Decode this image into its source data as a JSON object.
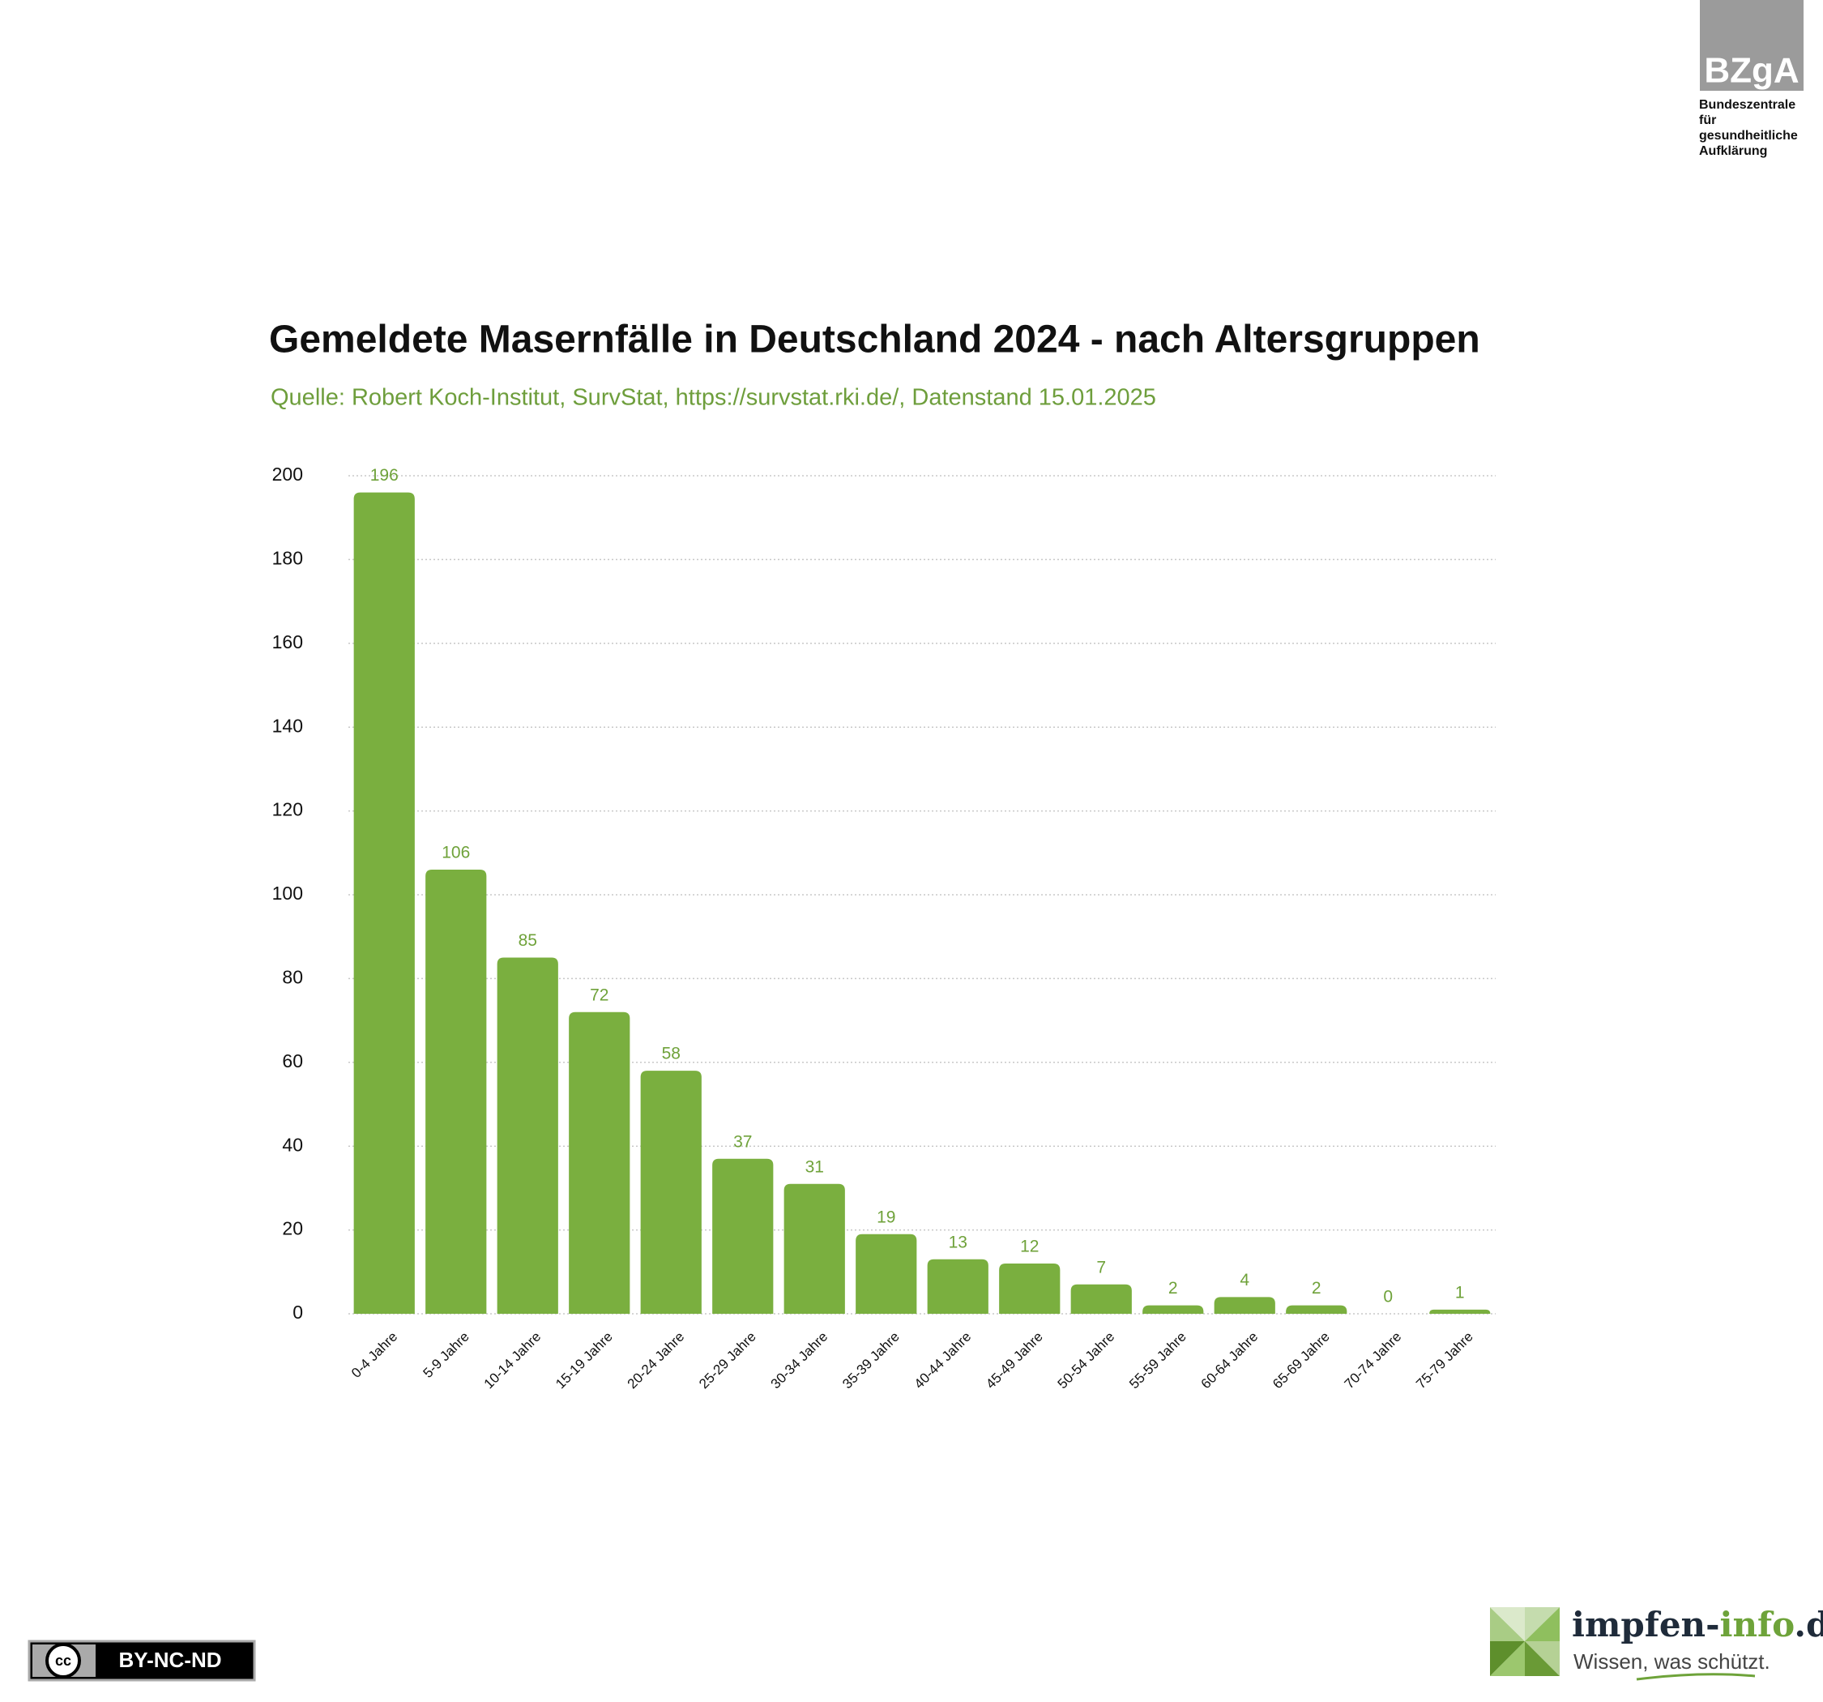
{
  "chart_data": {
    "type": "bar",
    "title": "Gemeldete Masernfälle in Deutschland 2024 - nach Altersgruppen",
    "subtitle": "Quelle: Robert Koch-Institut, SurvStat, https://survstat.rki.de/, Datenstand 15.01.2025",
    "categories": [
      "0-4 Jahre",
      "5-9 Jahre",
      "10-14 Jahre",
      "15-19 Jahre",
      "20-24 Jahre",
      "25-29 Jahre",
      "30-34 Jahre",
      "35-39 Jahre",
      "40-44 Jahre",
      "45-49 Jahre",
      "50-54 Jahre",
      "55-59 Jahre",
      "60-64 Jahre",
      "65-69 Jahre",
      "70-74 Jahre",
      "75-79 Jahre"
    ],
    "values": [
      196,
      106,
      85,
      72,
      58,
      37,
      31,
      19,
      13,
      12,
      7,
      2,
      4,
      2,
      0,
      1
    ],
    "color": "#7aaf3f",
    "ylim": [
      0,
      200
    ],
    "yticks": [
      0,
      20,
      40,
      60,
      80,
      100,
      120,
      140,
      160,
      180,
      200
    ],
    "grid": true
  },
  "branding": {
    "bzga": "BZgA",
    "bzga_lines": [
      "Bundeszentrale",
      "für",
      "gesundheitliche",
      "Aufklärung"
    ],
    "site_a": "impfen-",
    "site_b": "info",
    "site_c": ".de",
    "slogan": "Wissen, was schützt.",
    "license_cc": "cc",
    "license": "BY-NC-ND"
  }
}
